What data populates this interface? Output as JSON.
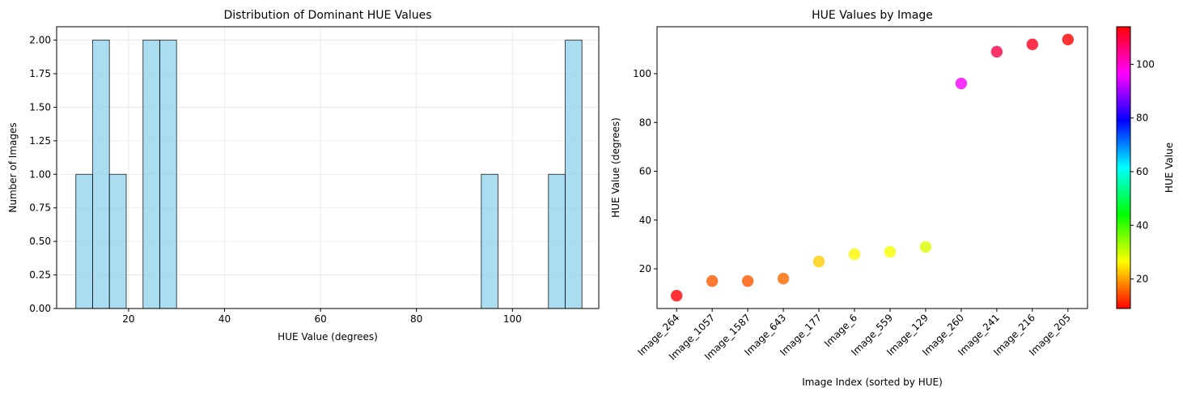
{
  "chart_data": [
    {
      "type": "bar",
      "title": "Distribution of Dominant HUE Values",
      "xlabel": "HUE Value (degrees)",
      "ylabel": "Number of Images",
      "xlim": [
        5,
        118
      ],
      "ylim": [
        0,
        2.1
      ],
      "xticks": [
        20,
        40,
        60,
        80,
        100
      ],
      "yticks": [
        "0.00",
        "0.25",
        "0.50",
        "0.75",
        "1.00",
        "1.25",
        "1.50",
        "1.75",
        "2.00"
      ],
      "grid": true,
      "bar_color": "#87ceeb",
      "bins": [
        {
          "start": 9.0,
          "end": 12.5,
          "count": 1
        },
        {
          "start": 12.5,
          "end": 16.0,
          "count": 2
        },
        {
          "start": 16.0,
          "end": 19.5,
          "count": 1
        },
        {
          "start": 23.0,
          "end": 26.5,
          "count": 2
        },
        {
          "start": 26.5,
          "end": 30.0,
          "count": 2
        },
        {
          "start": 93.5,
          "end": 97.0,
          "count": 1
        },
        {
          "start": 107.5,
          "end": 111.0,
          "count": 1
        },
        {
          "start": 111.0,
          "end": 114.5,
          "count": 2
        }
      ]
    },
    {
      "type": "scatter",
      "title": "HUE Values by Image",
      "xlabel": "Image Index (sorted by HUE)",
      "ylabel": "HUE Value (degrees)",
      "ylim": [
        3.75,
        119.25
      ],
      "yticks": [
        20,
        40,
        60,
        80,
        100
      ],
      "grid": false,
      "categories": [
        "Image_264",
        "Image_1057",
        "Image_1587",
        "Image_643",
        "Image_177",
        "Image_6",
        "Image_559",
        "Image_129",
        "Image_260",
        "Image_241",
        "Image_216",
        "Image_205"
      ],
      "values": [
        9,
        15,
        15,
        16,
        23,
        26,
        27,
        29,
        96,
        109,
        112,
        114
      ],
      "colorbar": {
        "label": "HUE Value",
        "range": [
          9,
          114
        ],
        "ticks": [
          20,
          40,
          60,
          80,
          100
        ],
        "colormap": "hsv"
      }
    }
  ]
}
